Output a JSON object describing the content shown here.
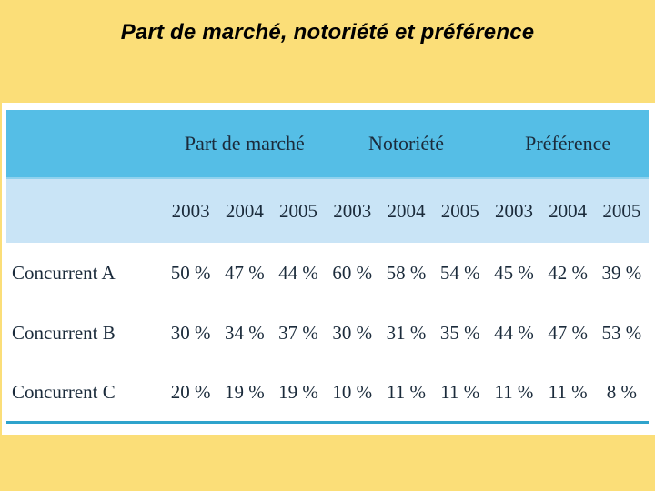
{
  "slide": {
    "title": "Part de marché, notoriété et préférence",
    "colors": {
      "background": "#FBDE78",
      "panel": "#FFFFFF",
      "header_band": "#55BEE6",
      "year_band": "#C9E4F6",
      "bottom_rule": "#2FA3CC",
      "table_text": "#1B2B3B",
      "title_text": "#000000"
    }
  },
  "chart_data": {
    "type": "table",
    "title": "Part de marché, notoriété et préférence",
    "group_headers": [
      "Part de marché",
      "Notoriété",
      "Préférence"
    ],
    "year_headers": [
      "2003",
      "2004",
      "2005",
      "2003",
      "2004",
      "2005",
      "2003",
      "2004",
      "2005"
    ],
    "rows": [
      {
        "label": "Concurrent A",
        "values": [
          "50 %",
          "47 %",
          "44 %",
          "60 %",
          "58 %",
          "54 %",
          "45 %",
          "42 %",
          "39 %"
        ]
      },
      {
        "label": "Concurrent B",
        "values": [
          "30 %",
          "34 %",
          "37 %",
          "30 %",
          "31 %",
          "35 %",
          "44 %",
          "47 %",
          "53 %"
        ]
      },
      {
        "label": "Concurrent C",
        "values": [
          "20 %",
          "19 %",
          "19 %",
          "10 %",
          "11 %",
          "11 %",
          "11 %",
          "11 %",
          "8 %"
        ]
      }
    ]
  }
}
